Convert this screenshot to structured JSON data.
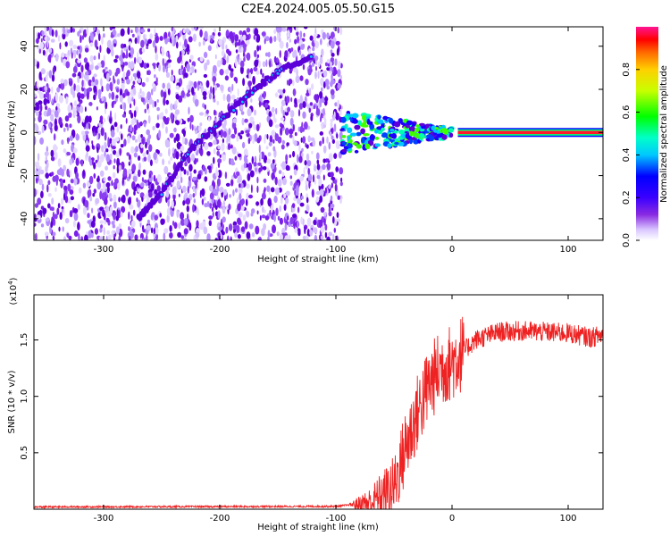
{
  "page_title": "C2E4.2024.005.05.50.G15",
  "chart_data": [
    {
      "type": "heatmap",
      "panel": "spectrogram",
      "xlabel": "Height of straight line (km)",
      "ylabel": "Frequency (Hz)",
      "xlim": [
        -360,
        130
      ],
      "ylim": [
        -50,
        49
      ],
      "xticks": [
        -300,
        -200,
        -100,
        0,
        100
      ],
      "yticks": [
        -40,
        -20,
        0,
        20,
        40
      ],
      "noise_region_x": [
        -360,
        -95
      ],
      "diagonal_trace": [
        {
          "x": -270,
          "y": -40
        },
        {
          "x": -250,
          "y": -28
        },
        {
          "x": -225,
          "y": -8
        },
        {
          "x": -200,
          "y": 5
        },
        {
          "x": -175,
          "y": 18
        },
        {
          "x": -150,
          "y": 28
        },
        {
          "x": -120,
          "y": 36
        }
      ],
      "carrier_line": {
        "x_start": 5,
        "x_end": 130,
        "y": 0
      },
      "transition_x": [
        -95,
        0
      ],
      "colorbar": {
        "label": "Normalized spectral amplitude",
        "ticks": [
          "0.0",
          "0.2",
          "0.4",
          "0.6",
          "0.8"
        ],
        "range": [
          0,
          1
        ],
        "colormap": "rainbow"
      },
      "colors": {
        "noise": "#7a2cf0",
        "trace": "#5b00d8",
        "carrier": "#ff1a2a"
      }
    },
    {
      "type": "line",
      "panel": "snr",
      "xlabel": "Height of straight line (km)",
      "ylabel": "SNR (10 * v/v)",
      "multiplier_label": "(x10",
      "multiplier_exp": "4",
      "xlim": [
        -360,
        130
      ],
      "ylim": [
        0,
        1.9
      ],
      "xticks": [
        -300,
        -200,
        -100,
        0,
        100
      ],
      "yticks": [
        "0.5",
        "1.0",
        "1.5"
      ],
      "series": [
        {
          "color": "#ee2222",
          "x": [
            -360,
            -100,
            -70,
            -50,
            -40,
            -30,
            -20,
            -10,
            0,
            10,
            20,
            40,
            60,
            80,
            100,
            120,
            130
          ],
          "y": [
            0.02,
            0.025,
            0.06,
            0.2,
            0.55,
            0.85,
            1.1,
            1.25,
            1.3,
            1.4,
            1.5,
            1.57,
            1.58,
            1.57,
            1.56,
            1.52,
            1.55
          ]
        }
      ]
    }
  ]
}
